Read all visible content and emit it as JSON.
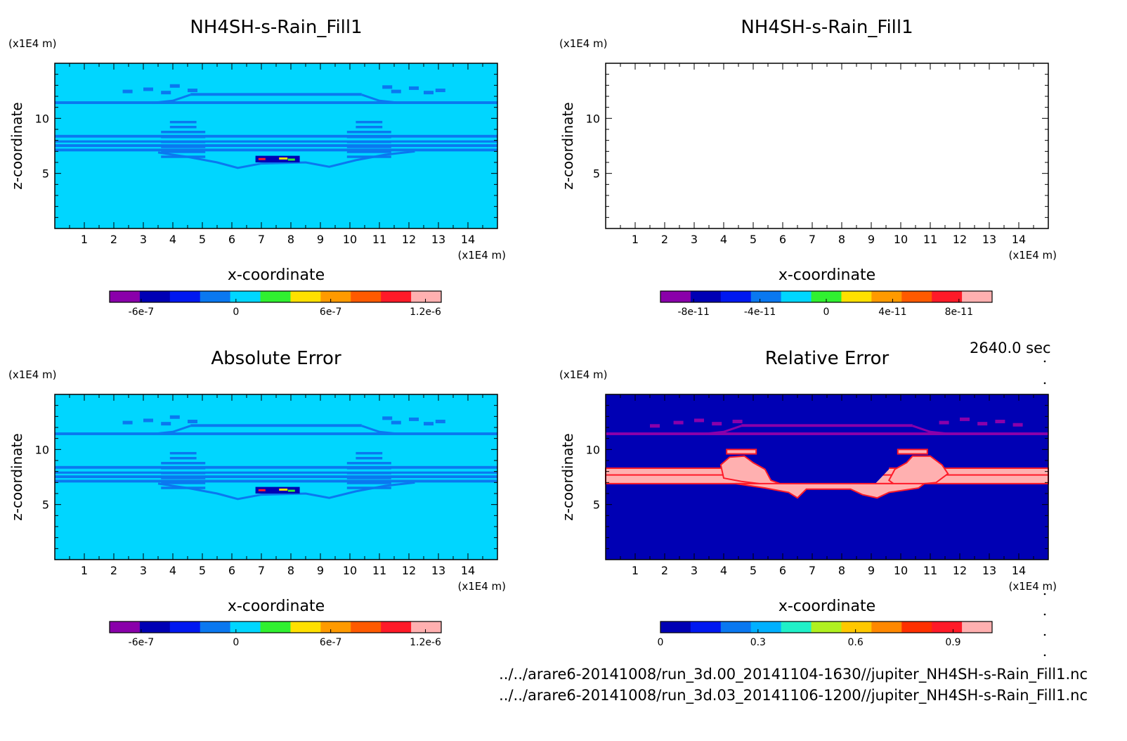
{
  "timestamp": "2640.0 sec",
  "files": [
    "../../arare6-20141008/run_3d.00_20141104-1630//jupiter_NH4SH-s-Rain_Fill1.nc",
    "../../arare6-20141008/run_3d.03_20141106-1200//jupiter_NH4SH-s-Rain_Fill1.nc"
  ],
  "colors": {
    "rainbow13": [
      "#8a00aa",
      "#0000b4",
      "#0018f0",
      "#0a78f0",
      "#00d6ff",
      "#30f030",
      "#ffe000",
      "#ff9a00",
      "#ff5a00",
      "#ff1a28",
      "#ffb0b0"
    ],
    "relative11": [
      "#0000b4",
      "#0018f0",
      "#0a78f0",
      "#00b0ff",
      "#20f0c8",
      "#b0f020",
      "#ffc800",
      "#ff8800",
      "#ff3000",
      "#ff1a28",
      "#ffb0b0"
    ]
  },
  "chart_data": [
    {
      "type": "heatmap",
      "title": "NH4SH-s-Rain_Fill1",
      "xlabel": "x-coordinate",
      "ylabel": "z-coordinate",
      "x_unit": "(x1E4 m)",
      "y_unit": "(x1E4 m)",
      "xlim": [
        0,
        15
      ],
      "ylim": [
        0,
        15
      ],
      "x_ticks": [
        1,
        2,
        3,
        4,
        5,
        6,
        7,
        8,
        9,
        10,
        11,
        12,
        13,
        14
      ],
      "y_ticks": [
        5,
        10
      ],
      "field": "rain_anomaly",
      "background": "#00d6ff",
      "feature_color": "#0a78f0",
      "colorbar": {
        "palette": "rainbow13",
        "labels": [
          {
            "text": "-6e-7",
            "value": -6e-07
          },
          {
            "text": "0",
            "value": 0
          },
          {
            "text": "6e-7",
            "value": 6e-07
          },
          {
            "text": "1.2e-6",
            "value": 1.2e-06
          }
        ],
        "range": [
          -8e-07,
          1.3e-06
        ]
      }
    },
    {
      "type": "heatmap",
      "title": "NH4SH-s-Rain_Fill1",
      "xlabel": "x-coordinate",
      "ylabel": "z-coordinate",
      "x_unit": "(x1E4 m)",
      "y_unit": "(x1E4 m)",
      "xlim": [
        0,
        15
      ],
      "ylim": [
        0,
        15
      ],
      "x_ticks": [
        1,
        2,
        3,
        4,
        5,
        6,
        7,
        8,
        9,
        10,
        11,
        12,
        13,
        14
      ],
      "y_ticks": [
        5,
        10
      ],
      "field": "empty",
      "background": "#ffffff",
      "colorbar": {
        "palette": "rainbow13",
        "labels": [
          {
            "text": "-8e-11",
            "value": -8e-11
          },
          {
            "text": "-4e-11",
            "value": -4e-11
          },
          {
            "text": "0",
            "value": 0
          },
          {
            "text": "4e-11",
            "value": 4e-11
          },
          {
            "text": "8e-11",
            "value": 8e-11
          }
        ],
        "range": [
          -1e-10,
          1e-10
        ]
      }
    },
    {
      "type": "heatmap",
      "title": "Absolute Error",
      "xlabel": "x-coordinate",
      "ylabel": "z-coordinate",
      "x_unit": "(x1E4 m)",
      "y_unit": "(x1E4 m)",
      "xlim": [
        0,
        15
      ],
      "ylim": [
        0,
        15
      ],
      "x_ticks": [
        1,
        2,
        3,
        4,
        5,
        6,
        7,
        8,
        9,
        10,
        11,
        12,
        13,
        14
      ],
      "y_ticks": [
        5,
        10
      ],
      "field": "rain_anomaly",
      "background": "#00d6ff",
      "feature_color": "#0a78f0",
      "colorbar": {
        "palette": "rainbow13",
        "labels": [
          {
            "text": "-6e-7",
            "value": -6e-07
          },
          {
            "text": "0",
            "value": 0
          },
          {
            "text": "6e-7",
            "value": 6e-07
          },
          {
            "text": "1.2e-6",
            "value": 1.2e-06
          }
        ],
        "range": [
          -8e-07,
          1.3e-06
        ]
      }
    },
    {
      "type": "heatmap",
      "title": "Relative Error",
      "xlabel": "x-coordinate",
      "ylabel": "z-coordinate",
      "x_unit": "(x1E4 m)",
      "y_unit": "(x1E4 m)",
      "xlim": [
        0,
        15
      ],
      "ylim": [
        0,
        15
      ],
      "x_ticks": [
        1,
        2,
        3,
        4,
        5,
        6,
        7,
        8,
        9,
        10,
        11,
        12,
        13,
        14
      ],
      "y_ticks": [
        5,
        10
      ],
      "field": "relative_error",
      "background": "#0000b4",
      "colorbar": {
        "palette": "relative11",
        "labels": [
          {
            "text": "0",
            "value": 0
          },
          {
            "text": "0.3",
            "value": 0.3
          },
          {
            "text": "0.6",
            "value": 0.6
          },
          {
            "text": "0.9",
            "value": 0.9
          }
        ],
        "range": [
          0,
          1.02
        ]
      }
    }
  ]
}
